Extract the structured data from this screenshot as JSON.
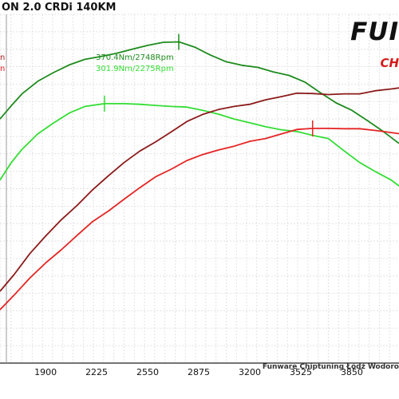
{
  "title": "ON 2.0 CRDi 140KM",
  "logo": {
    "main": "FUI",
    "sub": "CH"
  },
  "footer": "Funware Chiptuning Łódź Wodoro",
  "left_markers": [
    {
      "text": "n",
      "color": "#b01a1a"
    },
    {
      "text": "n",
      "color": "#e52424"
    }
  ],
  "peak_labels": [
    {
      "text": "370.4Nm/2748Rpm",
      "color": "#1e8b1e"
    },
    {
      "text": "301.9Nm/2275Rpm",
      "color": "#33dd33"
    }
  ],
  "chart_data": {
    "type": "line",
    "x_ticks": [
      1900,
      2225,
      2550,
      2875,
      3200,
      3525,
      3850
    ],
    "xlim": [
      1610,
      4150
    ],
    "ylim": [
      0,
      100
    ],
    "grid": true,
    "series": [
      {
        "color": "#1e8b1e",
        "x": [
          1610,
          1680,
          1750,
          1850,
          1950,
          2050,
          2150,
          2250,
          2350,
          2450,
          2550,
          2650,
          2750,
          2850,
          2950,
          3050,
          3150,
          3250,
          3350,
          3450,
          3550,
          3650,
          3750,
          3850,
          3950,
          4050,
          4150
        ],
        "y": [
          70,
          73.7,
          77.2,
          80.8,
          83.3,
          85.5,
          87.1,
          87.9,
          88.8,
          90,
          91.1,
          92,
          92.1,
          90.6,
          88.3,
          86.4,
          85.4,
          84.8,
          83.5,
          82.5,
          80.6,
          77.5,
          74.6,
          72.5,
          69.5,
          66.4,
          63
        ]
      },
      {
        "color": "#33dd33",
        "x": [
          1610,
          1680,
          1750,
          1850,
          1950,
          2050,
          2150,
          2275,
          2400,
          2500,
          2600,
          2700,
          2800,
          2900,
          3000,
          3100,
          3200,
          3300,
          3400,
          3500,
          3600,
          3700,
          3800,
          3900,
          4000,
          4100,
          4150
        ],
        "y": [
          52.5,
          57.4,
          61.3,
          65.7,
          68.8,
          71.7,
          73.6,
          74.4,
          74.4,
          74.2,
          73.9,
          73.6,
          73.4,
          72.5,
          71.4,
          70,
          68.9,
          67.8,
          66.9,
          66.4,
          65.3,
          64.4,
          60.9,
          57.5,
          54.9,
          52.5,
          50.8
        ]
      },
      {
        "color": "#8b1a1a",
        "x": [
          1610,
          1700,
          1800,
          1900,
          2000,
          2100,
          2200,
          2300,
          2400,
          2500,
          2600,
          2700,
          2800,
          2900,
          3000,
          3100,
          3200,
          3300,
          3400,
          3500,
          3600,
          3700,
          3800,
          3900,
          4000,
          4100,
          4150
        ],
        "y": [
          20.6,
          25.4,
          31.4,
          36.4,
          41.1,
          45.2,
          49.7,
          53.7,
          57.5,
          60.8,
          63.4,
          66.3,
          69.3,
          71.3,
          72.7,
          73.6,
          74.2,
          75.5,
          76.4,
          77.4,
          77.3,
          77,
          77.2,
          77.2,
          78.1,
          78.6,
          78.9
        ]
      },
      {
        "color": "#e52424",
        "x": [
          1610,
          1700,
          1800,
          1900,
          2000,
          2100,
          2200,
          2300,
          2400,
          2500,
          2600,
          2700,
          2800,
          2900,
          3000,
          3100,
          3200,
          3300,
          3400,
          3500,
          3600,
          3700,
          3800,
          3900,
          4000,
          4100,
          4150
        ],
        "y": [
          15.3,
          19.5,
          24.4,
          28.7,
          32.5,
          36.6,
          40.6,
          43.6,
          47,
          50.3,
          53.4,
          55.6,
          58.1,
          59.8,
          61.1,
          62.2,
          63.6,
          64.4,
          65.7,
          67,
          67.3,
          67.3,
          67.2,
          67.2,
          66.7,
          66.1,
          65.8
        ]
      }
    ],
    "peak_markers": [
      {
        "series_index": 0,
        "x": 2748,
        "y": 92.1
      },
      {
        "series_index": 1,
        "x": 2275,
        "y": 74.4
      },
      {
        "series_index": 3,
        "x": 3600,
        "y": 67.3
      }
    ]
  }
}
